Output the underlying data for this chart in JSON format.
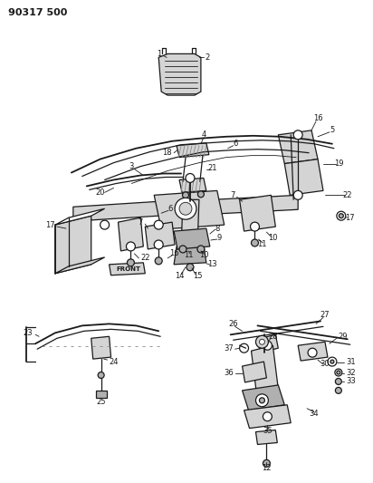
{
  "title": "90317 500",
  "bg_color": "#ffffff",
  "lw_thin": 0.6,
  "lw_med": 0.9,
  "lw_thick": 1.3,
  "color": "#1a1a1a",
  "gray_light": "#d4d4d4",
  "gray_med": "#b0b0b0",
  "gray_dark": "#888888"
}
